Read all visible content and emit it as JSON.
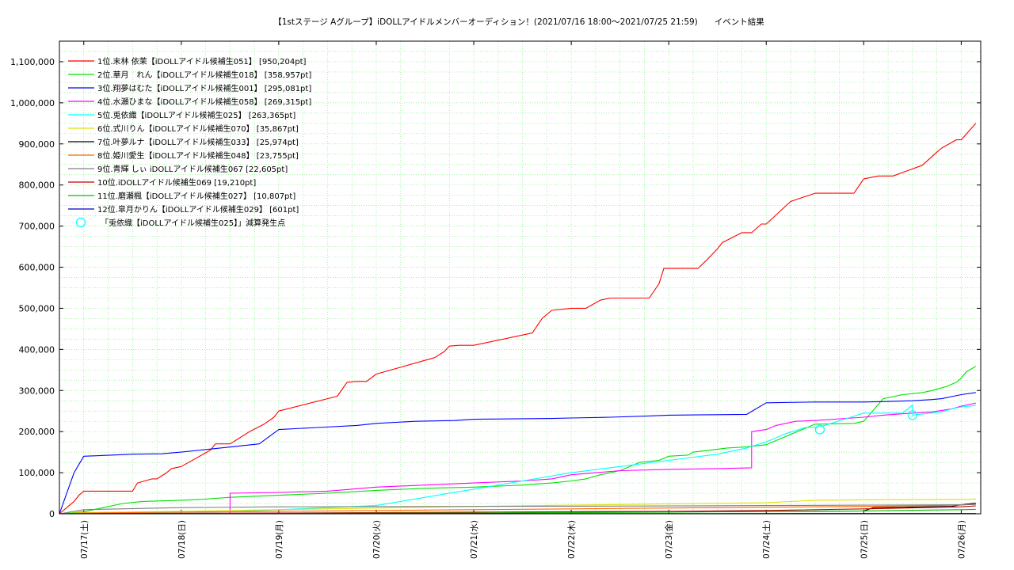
{
  "chart_data": {
    "type": "line",
    "title": "【1stステージ Aグループ】iDOLLアイドルメンバーオーディション！(2021/07/16 18:00～2021/07/25 21:59)　　イベント結果",
    "xlabel": "",
    "ylabel": "",
    "ylim": [
      0,
      1150000
    ],
    "y_ticks": [
      0,
      100000,
      200000,
      300000,
      400000,
      500000,
      600000,
      700000,
      800000,
      900000,
      1000000,
      1100000
    ],
    "y_tick_labels": [
      "0",
      "100,000",
      "200,000",
      "300,000",
      "400,000",
      "500,000",
      "600,000",
      "700,000",
      "800,000",
      "900,000",
      "1,000,000",
      "1,100,000"
    ],
    "x_range_days": [
      -0.25,
      9.2
    ],
    "x_ticks": [
      0,
      1,
      2,
      3,
      4,
      5,
      6,
      7,
      8,
      9
    ],
    "x_tick_labels": [
      "07/17(土)",
      "07/18(日)",
      "07/19(月)",
      "07/20(火)",
      "07/21(水)",
      "07/22(木)",
      "07/23(金)",
      "07/24(土)",
      "07/25(日)",
      "07/26(月)"
    ],
    "grid": true,
    "legend_position": "top-left",
    "series": [
      {
        "name": "1位.末林 依茉【iDOLLアイドル候補生051】 [950,204pt]",
        "color": "#ff0000",
        "x": [
          -0.25,
          -0.15,
          -0.1,
          -0.05,
          0,
          0.5,
          0.55,
          0.7,
          0.75,
          0.85,
          0.9,
          1,
          1.3,
          1.35,
          1.5,
          1.6,
          1.7,
          1.85,
          1.95,
          2,
          2.6,
          2.7,
          2.8,
          2.9,
          3,
          3.6,
          3.7,
          3.75,
          3.85,
          4,
          4.6,
          4.7,
          4.8,
          5,
          5.15,
          5.3,
          5.4,
          5.8,
          5.9,
          5.95,
          6.3,
          6.4,
          6.5,
          6.55,
          6.75,
          6.85,
          6.95,
          7,
          7.25,
          7.5,
          7.9,
          8,
          8.15,
          8.3,
          8.6,
          8.75,
          8.8,
          8.95,
          9,
          9.15
        ],
        "y": [
          0,
          20000,
          30000,
          45000,
          55000,
          55000,
          75000,
          85000,
          85000,
          100000,
          110000,
          115000,
          155000,
          170000,
          170000,
          185000,
          200000,
          218000,
          235000,
          250000,
          286000,
          320000,
          322000,
          322000,
          340000,
          380000,
          395000,
          408000,
          410000,
          410000,
          440000,
          475000,
          495000,
          500000,
          500000,
          520000,
          525000,
          525000,
          560000,
          597000,
          597000,
          620000,
          645000,
          660000,
          684000,
          684000,
          705000,
          705000,
          760000,
          780000,
          780000,
          815000,
          822000,
          822000,
          848000,
          880000,
          890000,
          910000,
          910000,
          950204
        ]
      },
      {
        "name": "2位.華月　れん【iDOLLアイドル候補生018】 [358,957pt]",
        "color": "#00e000",
        "x": [
          -0.25,
          0,
          0.1,
          0.2,
          0.4,
          0.6,
          1,
          1.2,
          1.5,
          2,
          2.5,
          3,
          3.5,
          4,
          4.5,
          4.8,
          5,
          5.15,
          5.3,
          5.5,
          5.7,
          5.9,
          6,
          6.2,
          6.25,
          6.6,
          6.8,
          7,
          7.5,
          7.9,
          8,
          8.2,
          8.4,
          8.6,
          8.7,
          8.75,
          8.85,
          8.95,
          9,
          9.05,
          9.15
        ],
        "y": [
          0,
          5000,
          10000,
          15000,
          25000,
          30000,
          33000,
          35000,
          40000,
          45000,
          50000,
          57000,
          62000,
          65000,
          70000,
          75000,
          80000,
          85000,
          95000,
          105000,
          125000,
          130000,
          140000,
          143000,
          150000,
          160000,
          163000,
          168000,
          218000,
          220000,
          225000,
          280000,
          290000,
          295000,
          300000,
          303000,
          310000,
          320000,
          330000,
          345000,
          358957
        ]
      },
      {
        "name": "3位.翔夢はむた【iDOLLアイドル候補生001】 [295,081pt]",
        "color": "#0000ff",
        "x": [
          -0.25,
          -0.1,
          -0.05,
          0,
          0.3,
          0.5,
          0.8,
          1,
          1.2,
          1.4,
          1.6,
          1.8,
          2,
          2.4,
          2.8,
          3,
          3.4,
          3.8,
          4,
          4.4,
          4.8,
          5,
          5.4,
          5.8,
          6,
          6.4,
          6.8,
          7,
          7.5,
          8,
          8.2,
          8.5,
          8.7,
          8.8,
          8.9,
          9,
          9.15
        ],
        "y": [
          0,
          100000,
          120000,
          140000,
          143000,
          145000,
          146000,
          150000,
          155000,
          160000,
          165000,
          170000,
          205000,
          210000,
          215000,
          220000,
          225000,
          227000,
          230000,
          231000,
          232000,
          233000,
          235000,
          238000,
          240000,
          241000,
          242000,
          270000,
          272000,
          272000,
          273000,
          275000,
          278000,
          280000,
          285000,
          290000,
          295081
        ]
      },
      {
        "name": "4位.水瀬ひまな【iDOLLアイドル候補生058】 [269,315pt]",
        "color": "#ff00ff",
        "x": [
          -0.25,
          1.5,
          1.5,
          2,
          2.5,
          3,
          3.5,
          4,
          4.5,
          4.8,
          5,
          5.5,
          6,
          6.5,
          6.85,
          6.85,
          7,
          7.1,
          7.3,
          7.5,
          8,
          8.2,
          8.5,
          8.7,
          8.9,
          9,
          9.15
        ],
        "y": [
          0,
          0,
          50000,
          52000,
          55000,
          65000,
          70000,
          75000,
          80000,
          85000,
          95000,
          105000,
          108000,
          110000,
          112000,
          200000,
          205000,
          215000,
          225000,
          227000,
          235000,
          240000,
          245000,
          248000,
          255000,
          262000,
          269315
        ]
      },
      {
        "name": "5位.兎依織【iDOLLアイドル候補生025】 [263,365pt]",
        "color": "#00ffff",
        "x": [
          -0.25,
          1.5,
          2,
          2.5,
          3,
          3.5,
          4,
          4.5,
          5,
          5.5,
          6,
          6.5,
          6.8,
          7,
          7.2,
          7.4,
          7.5,
          7.6,
          7.8,
          8,
          8.2,
          8.4,
          8.5,
          8.5,
          8.6,
          8.8,
          8.9,
          9,
          9.15
        ],
        "y": [
          0,
          5000,
          10000,
          15000,
          20000,
          40000,
          60000,
          80000,
          100000,
          115000,
          130000,
          145000,
          160000,
          175000,
          195000,
          210000,
          210000,
          215000,
          230000,
          245000,
          245000,
          245000,
          265000,
          240000,
          243000,
          248000,
          255000,
          260000,
          263365
        ]
      },
      {
        "name": "6位.式川りん【iDOLLアイドル候補生070】 [35,867pt]",
        "color": "#e0e000",
        "x": [
          -0.25,
          0,
          1,
          2,
          3,
          4,
          5,
          6,
          7,
          7.5,
          8,
          9,
          9.15
        ],
        "y": [
          0,
          3000,
          6000,
          10000,
          14000,
          18000,
          21000,
          24000,
          27000,
          33000,
          34000,
          35000,
          35867
        ]
      },
      {
        "name": "7位.叶夢ルナ【iDOLLアイドル候補生033】 [25,974pt]",
        "color": "#000000",
        "x": [
          -0.25,
          2,
          4,
          6,
          8,
          8.1,
          8.9,
          9,
          9.15
        ],
        "y": [
          0,
          1000,
          2000,
          5000,
          7000,
          15000,
          18000,
          22000,
          25974
        ]
      },
      {
        "name": "8位.姫川愛生【iDOLLアイドル候補生048】 [23,755pt]",
        "color": "#ff6600",
        "x": [
          -0.25,
          0,
          1,
          2,
          3,
          4,
          5,
          6,
          7,
          8,
          9,
          9.15
        ],
        "y": [
          0,
          2000,
          4000,
          6000,
          8000,
          10000,
          12000,
          14000,
          16000,
          18000,
          21000,
          23755
        ]
      },
      {
        "name": "9位.青輝 しぃ iDOLLアイドル候補生067 [22,605pt]",
        "color": "#808080",
        "x": [
          -0.25,
          0,
          1,
          2,
          3,
          4,
          5,
          6,
          7,
          8,
          9,
          9.15
        ],
        "y": [
          0,
          10000,
          15000,
          17000,
          17500,
          18000,
          18500,
          19000,
          20000,
          21000,
          22000,
          22605
        ]
      },
      {
        "name": "10位.iDOLLアイドル候補生069 [19,210pt]",
        "color": "#c00000",
        "x": [
          -0.25,
          2,
          4,
          6,
          7,
          8,
          9,
          9.15
        ],
        "y": [
          0,
          2000,
          4000,
          6000,
          8000,
          12000,
          17000,
          19210
        ]
      },
      {
        "name": "11位.磨瀬楓【iDOLLアイドル候補生027】 [10,807pt]",
        "color": "#00c000",
        "x": [
          -0.25,
          2,
          4,
          6,
          8,
          9,
          9.15
        ],
        "y": [
          0,
          1000,
          2000,
          4000,
          7000,
          10000,
          10807
        ]
      },
      {
        "name": "12位.皐月かりん【iDOLLアイドル候補生029】 [601pt]",
        "color": "#0000c0",
        "x": [
          -0.25,
          4,
          9.15
        ],
        "y": [
          0,
          300,
          601
        ]
      }
    ],
    "marker_legend": "「兎依織【iDOLLアイドル候補生025】」減算発生点",
    "marker_color": "#00ffff",
    "marker_points": [
      {
        "x": 7.55,
        "y": 205000
      },
      {
        "x": 8.5,
        "y": 240000
      }
    ]
  }
}
